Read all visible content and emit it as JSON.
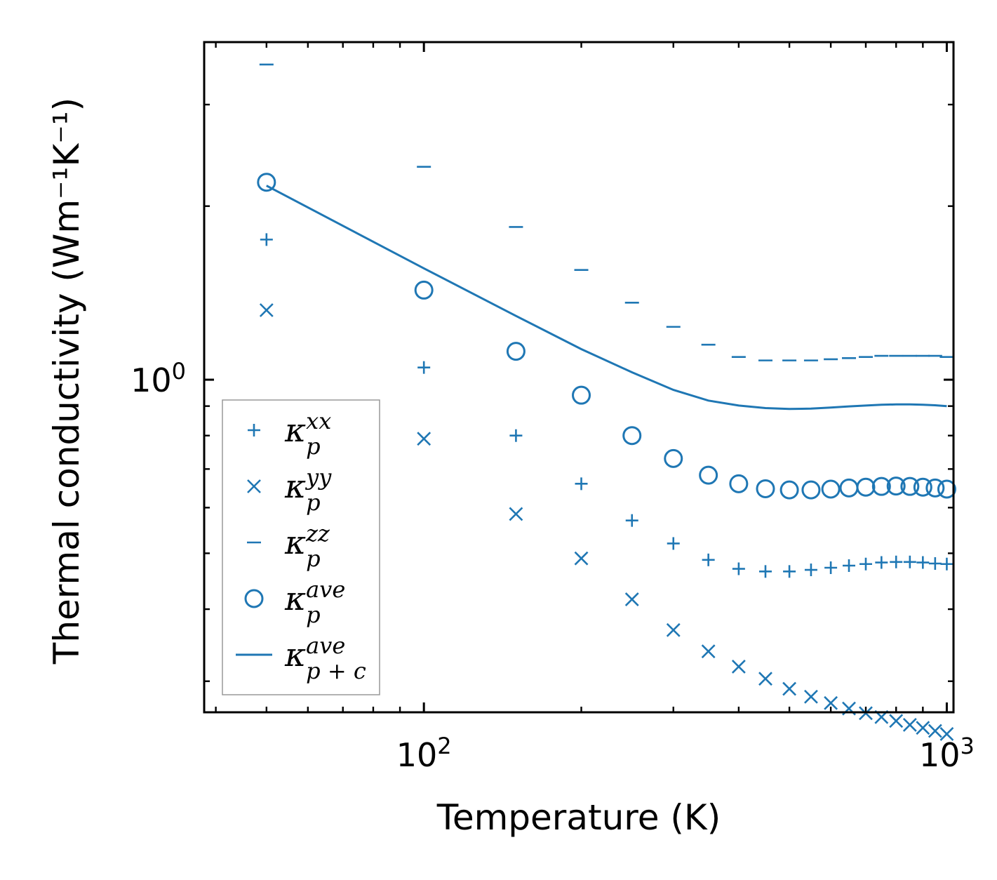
{
  "chart_data": {
    "type": "scatter",
    "title": "",
    "xlabel": "Temperature (K)",
    "ylabel": "Thermal conductivity (Wm⁻¹K⁻¹)",
    "xscale": "log",
    "yscale": "log",
    "xlim": [
      38,
      1030
    ],
    "ylim": [
      0.265,
      3.85
    ],
    "xticks": [
      {
        "value": 100,
        "base": "10",
        "exp": "2"
      },
      {
        "value": 1000,
        "base": "10",
        "exp": "3"
      }
    ],
    "yticks": [
      {
        "value": 1,
        "base": "10",
        "exp": "0"
      }
    ],
    "color": "#1f77b4",
    "legend_position": "lower-left",
    "x": [
      50,
      100,
      150,
      200,
      250,
      300,
      350,
      400,
      450,
      500,
      550,
      600,
      650,
      700,
      750,
      800,
      850,
      900,
      950,
      1000
    ],
    "series": [
      {
        "name": "kp_xx",
        "label_base": "κ",
        "label_sup": "xx",
        "label_sub": "p",
        "marker": "plus",
        "values": [
          1.75,
          1.05,
          0.8,
          0.66,
          0.57,
          0.52,
          0.487,
          0.47,
          0.465,
          0.465,
          0.468,
          0.472,
          0.476,
          0.479,
          0.482,
          0.483,
          0.483,
          0.482,
          0.48,
          0.479
        ]
      },
      {
        "name": "kp_yy",
        "label_base": "κ",
        "label_sup": "yy",
        "label_sub": "p",
        "marker": "x",
        "values": [
          1.32,
          0.79,
          0.585,
          0.49,
          0.416,
          0.368,
          0.338,
          0.318,
          0.303,
          0.291,
          0.282,
          0.275,
          0.269,
          0.264,
          0.26,
          0.256,
          0.252,
          0.249,
          0.246,
          0.243
        ]
      },
      {
        "name": "kp_zz",
        "label_base": "κ",
        "label_sup": "zz",
        "label_sub": "p",
        "marker": "hline",
        "values": [
          3.52,
          2.34,
          1.84,
          1.55,
          1.36,
          1.235,
          1.15,
          1.095,
          1.08,
          1.08,
          1.08,
          1.085,
          1.09,
          1.095,
          1.1,
          1.1,
          1.1,
          1.1,
          1.1,
          1.095
        ]
      },
      {
        "name": "kp_ave",
        "label_base": "κ",
        "label_sup": "ave",
        "label_sub": "p",
        "marker": "circle",
        "values": [
          2.2,
          1.43,
          1.12,
          0.94,
          0.8,
          0.73,
          0.683,
          0.66,
          0.647,
          0.644,
          0.644,
          0.646,
          0.649,
          0.651,
          0.653,
          0.654,
          0.653,
          0.651,
          0.649,
          0.646
        ]
      },
      {
        "name": "kpc_ave",
        "label_base": "κ",
        "label_sup": "ave",
        "label_sub": "p + c",
        "marker": "line",
        "values": [
          2.17,
          1.56,
          1.29,
          1.13,
          1.03,
          0.96,
          0.92,
          0.902,
          0.893,
          0.89,
          0.891,
          0.895,
          0.899,
          0.902,
          0.905,
          0.906,
          0.906,
          0.905,
          0.903,
          0.9
        ]
      }
    ]
  }
}
